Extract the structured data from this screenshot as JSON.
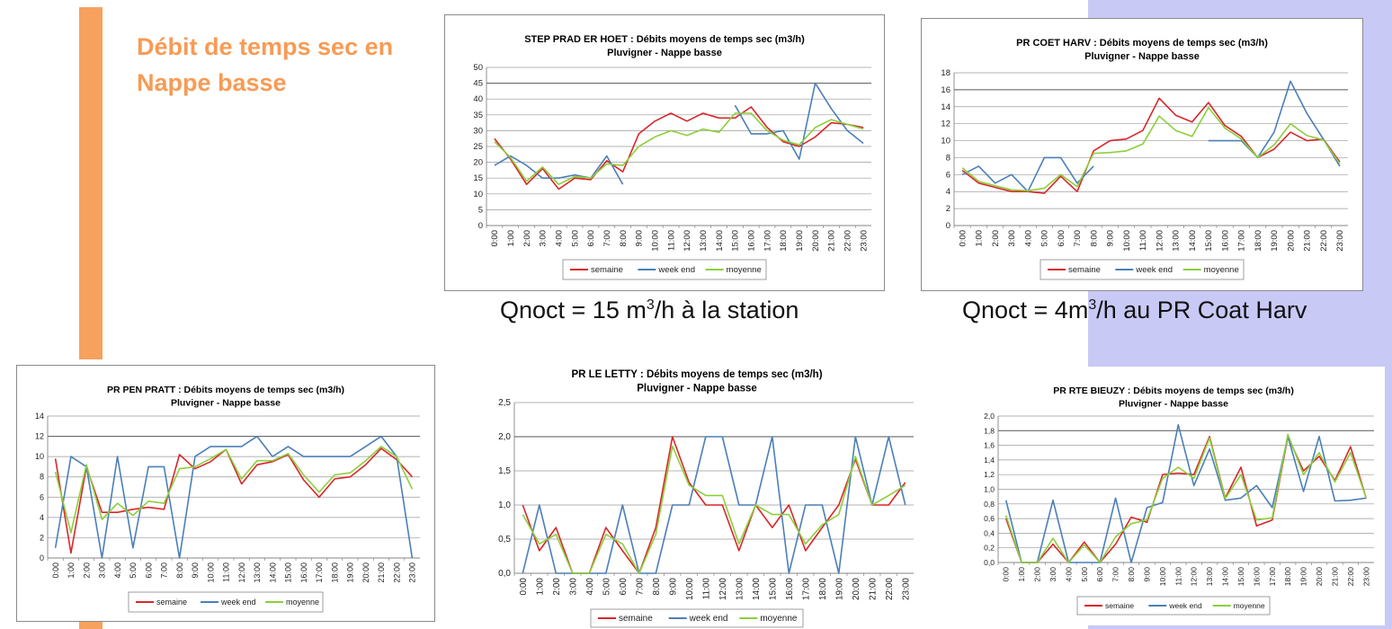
{
  "slide": {
    "title_line1": "Débit de temps sec en",
    "title_line2": "Nappe basse",
    "caption1": {
      "prefix": "Qnoct = 15 m",
      "sup": "3",
      "suffix": "/h à la station"
    },
    "caption2": {
      "prefix": "Qnoct = 4m",
      "sup": "3",
      "suffix": "/h au PR Coat Harv"
    }
  },
  "colors": {
    "semaine": "#d9262a",
    "week_end": "#4b7fb8",
    "moyenne": "#8ccf3c",
    "accent": "#f79b55",
    "lavender": "#c9c9f6"
  },
  "chart_data": [
    {
      "type": "line",
      "title": "STEP PRAD ER HOET : Débits moyens de temps sec (m3/h)",
      "subtitle": "Pluvigner - Nappe basse",
      "x": [
        "0:00",
        "1:00",
        "2:00",
        "3:00",
        "4:00",
        "5:00",
        "6:00",
        "7:00",
        "8:00",
        "9:00",
        "10:00",
        "11:00",
        "12:00",
        "13:00",
        "14:00",
        "15:00",
        "16:00",
        "17:00",
        "18:00",
        "19:00",
        "20:00",
        "21:00",
        "22:00",
        "23:00"
      ],
      "ylim": [
        0,
        50
      ],
      "yticks": [
        "0",
        "5",
        "10",
        "15",
        "20",
        "25",
        "30",
        "35",
        "40",
        "45",
        "50"
      ],
      "grid": true,
      "legend": "bottom",
      "series": [
        {
          "name": "semaine",
          "values": [
            27.5,
            21,
            13,
            18,
            11.5,
            15,
            14.5,
            20.5,
            17,
            29,
            33,
            35.5,
            33,
            35.5,
            34,
            34,
            37.5,
            31,
            26.5,
            25,
            28,
            32.5,
            32,
            31
          ]
        },
        {
          "name": "week end",
          "values": [
            19,
            22,
            19,
            15,
            15,
            16,
            15,
            22,
            13,
            null,
            null,
            null,
            null,
            null,
            null,
            38,
            29,
            29,
            30,
            21,
            45,
            37,
            30,
            26
          ]
        },
        {
          "name": "moyenne",
          "values": [
            26.5,
            21.5,
            14,
            18.5,
            13,
            15.5,
            15,
            19.5,
            19,
            25,
            28,
            30,
            28.5,
            30.5,
            29.5,
            35.5,
            35.5,
            30,
            27,
            25.5,
            31,
            33.5,
            32,
            30.5
          ]
        }
      ]
    },
    {
      "type": "line",
      "title": "PR COET HARV : Débits moyens de temps sec (m3/h)",
      "subtitle": "Pluvigner - Nappe basse",
      "x": [
        "0:00",
        "1:00",
        "2:00",
        "3:00",
        "4:00",
        "5:00",
        "6:00",
        "7:00",
        "8:00",
        "9:00",
        "10:00",
        "11:00",
        "12:00",
        "13:00",
        "14:00",
        "15:00",
        "16:00",
        "17:00",
        "18:00",
        "19:00",
        "20:00",
        "21:00",
        "22:00",
        "23:00"
      ],
      "ylim": [
        0,
        18
      ],
      "yticks": [
        "0",
        "2",
        "4",
        "6",
        "8",
        "10",
        "12",
        "14",
        "16",
        "18"
      ],
      "grid": true,
      "legend": "bottom",
      "series": [
        {
          "name": "semaine",
          "values": [
            6.5,
            5,
            4.5,
            4,
            4,
            3.8,
            5.8,
            4,
            8.8,
            10,
            10.2,
            11.2,
            15,
            13,
            12.2,
            14.5,
            11.8,
            10.5,
            8,
            9,
            11,
            10,
            10.2,
            7.5
          ]
        },
        {
          "name": "week end",
          "values": [
            6,
            7,
            5,
            6,
            4,
            8,
            8,
            5,
            7,
            null,
            null,
            null,
            null,
            null,
            null,
            10,
            10,
            10,
            8,
            11,
            17,
            13.2,
            10.2,
            7
          ]
        },
        {
          "name": "moyenne",
          "values": [
            6.8,
            5.2,
            4.7,
            4.2,
            4.1,
            4.4,
            6,
            4.6,
            8.5,
            8.6,
            8.8,
            9.6,
            12.9,
            11.2,
            10.5,
            13.9,
            11.5,
            10.2,
            8,
            9.5,
            12,
            10.6,
            10.1,
            7.3
          ]
        }
      ]
    },
    {
      "type": "line",
      "title": "PR PEN PRATT : Débits moyens de temps sec (m3/h)",
      "subtitle": "Pluvigner - Nappe basse",
      "x": [
        "0:00",
        "1:00",
        "2:00",
        "3:00",
        "4:00",
        "5:00",
        "6:00",
        "7:00",
        "8:00",
        "9:00",
        "10:00",
        "11:00",
        "12:00",
        "13:00",
        "14:00",
        "15:00",
        "16:00",
        "17:00",
        "18:00",
        "19:00",
        "20:00",
        "21:00",
        "22:00",
        "23:00"
      ],
      "ylim": [
        0,
        14
      ],
      "yticks": [
        "0",
        "2",
        "4",
        "6",
        "8",
        "10",
        "12",
        "14"
      ],
      "grid": true,
      "legend": "bottom",
      "series": [
        {
          "name": "semaine",
          "values": [
            9.8,
            0.5,
            9,
            4.5,
            4.5,
            4.8,
            5,
            4.8,
            10.2,
            8.8,
            9.5,
            10.7,
            7.3,
            9.2,
            9.5,
            10.2,
            7.7,
            6,
            7.8,
            8,
            9.2,
            10.8,
            9.7,
            8
          ]
        },
        {
          "name": "week end",
          "values": [
            1,
            10,
            9,
            0,
            10,
            1,
            9,
            9,
            0,
            10,
            11,
            11,
            11,
            12,
            10,
            11,
            10,
            10,
            10,
            10,
            11,
            12,
            10,
            0
          ]
        },
        {
          "name": "moyenne",
          "values": [
            8.5,
            2.5,
            9.2,
            3.8,
            5.4,
            4.2,
            5.6,
            5.4,
            8.8,
            9,
            9.8,
            10.7,
            7.8,
            9.6,
            9.6,
            10.3,
            8.2,
            6.5,
            8.2,
            8.4,
            9.6,
            11,
            10,
            6.8
          ]
        }
      ]
    },
    {
      "type": "line",
      "title": "PR LE LETTY : Débits moyens de temps sec (m3/h)",
      "subtitle": "Pluvigner - Nappe basse",
      "x": [
        "0:00",
        "1:00",
        "2:00",
        "3:00",
        "4:00",
        "5:00",
        "6:00",
        "7:00",
        "8:00",
        "9:00",
        "10:00",
        "11:00",
        "12:00",
        "13:00",
        "14:00",
        "15:00",
        "16:00",
        "17:00",
        "18:00",
        "19:00",
        "20:00",
        "21:00",
        "22:00",
        "23:00"
      ],
      "ylim": [
        0,
        2.5
      ],
      "yticks": [
        "0,0",
        "0,5",
        "1,0",
        "1,5",
        "2,0",
        "2,5"
      ],
      "grid": true,
      "legend": "bottom",
      "series": [
        {
          "name": "semaine",
          "values": [
            1,
            0.33,
            0.67,
            0,
            0,
            0.67,
            0.33,
            0,
            0.67,
            2,
            1.33,
            1,
            1,
            0.33,
            1,
            0.67,
            1,
            0.33,
            0.67,
            1,
            1.67,
            1,
            1,
            1.33
          ]
        },
        {
          "name": "week end",
          "values": [
            0,
            1,
            0,
            0,
            0,
            0,
            1,
            0,
            0,
            1,
            1,
            2,
            2,
            1,
            1,
            2,
            0,
            1,
            1,
            0,
            2,
            1,
            2,
            1
          ]
        },
        {
          "name": "moyenne",
          "values": [
            0.86,
            0.43,
            0.57,
            0,
            0,
            0.57,
            0.43,
            0,
            0.57,
            1.86,
            1.29,
            1.14,
            1.14,
            0.43,
            1,
            0.86,
            0.86,
            0.43,
            0.71,
            0.86,
            1.71,
            1,
            1.14,
            1.29
          ]
        }
      ]
    },
    {
      "type": "line",
      "title": "PR RTE BIEUZY : Débits moyens de temps sec (m3/h)",
      "subtitle": "Pluvigner - Nappe basse",
      "x": [
        "0:00",
        "1:00",
        "2:00",
        "3:00",
        "4:00",
        "5:00",
        "6:00",
        "7:00",
        "8:00",
        "9:00",
        "10:00",
        "11:00",
        "12:00",
        "13:00",
        "14:00",
        "15:00",
        "16:00",
        "17:00",
        "18:00",
        "19:00",
        "20:00",
        "21:00",
        "22:00",
        "23:00"
      ],
      "ylim": [
        0,
        2.0
      ],
      "yticks": [
        "0,0",
        "0,2",
        "0,4",
        "0,6",
        "0,8",
        "1,0",
        "1,2",
        "1,4",
        "1,6",
        "1,8",
        "2,0"
      ],
      "grid": true,
      "legend": "bottom",
      "series": [
        {
          "name": "semaine",
          "values": [
            0.6,
            0,
            0,
            0.25,
            0,
            0.28,
            0,
            0.25,
            0.62,
            0.55,
            1.2,
            1.22,
            1.2,
            1.72,
            0.88,
            1.3,
            0.5,
            0.58,
            1.72,
            1.25,
            1.45,
            1.12,
            1.58,
            0.88
          ]
        },
        {
          "name": "week end",
          "values": [
            0.85,
            0,
            0,
            0.85,
            0,
            0,
            0,
            0.88,
            0,
            0.75,
            0.82,
            1.88,
            1.05,
            1.55,
            0.85,
            0.88,
            1.05,
            0.75,
            1.72,
            0.97,
            1.72,
            0.84,
            0.85,
            0.88
          ]
        },
        {
          "name": "moyenne",
          "values": [
            0.64,
            0,
            0,
            0.33,
            0,
            0.24,
            0,
            0.35,
            0.53,
            0.58,
            1.15,
            1.3,
            1.15,
            1.7,
            0.87,
            1.2,
            0.58,
            0.61,
            1.75,
            1.2,
            1.5,
            1.1,
            1.5,
            0.88
          ]
        }
      ]
    }
  ]
}
